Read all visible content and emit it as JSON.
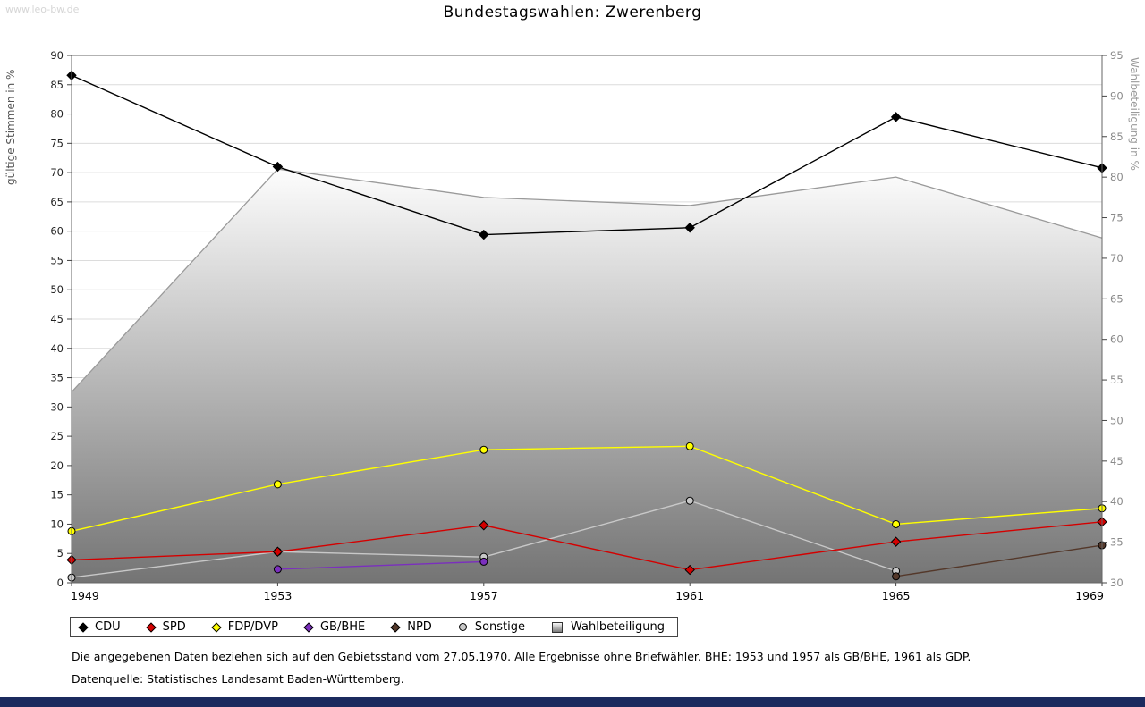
{
  "watermark": "www.leo-bw.de",
  "title": "Bundestagswahlen: Zwerenberg",
  "footnotes": [
    "Die angegebenen Daten beziehen sich auf den Gebietsstand vom 27.05.1970. Alle Ergebnisse ohne Briefwähler. BHE: 1953 und 1957 als GB/BHE, 1961 als GDP.",
    "Datenquelle: Statistisches Landesamt Baden-Württemberg."
  ],
  "colors": {
    "footer_bar": "#1b2a5e",
    "area_gradient_top": "#fdfdfd",
    "area_gradient_bottom": "#747474",
    "area_edge": "#9a9a9a",
    "gridline": "#dcdcdc",
    "plot_border": "#666666"
  },
  "chart_data": {
    "type": "line",
    "title": "Bundestagswahlen: Zwerenberg",
    "x": [
      1949,
      1953,
      1957,
      1961,
      1965,
      1969
    ],
    "left_axis": {
      "label": "gültige Stimmen in %",
      "min": 0,
      "max": 90,
      "tick_step": 5
    },
    "right_axis": {
      "label": "Wahlbeteiligung in %",
      "min": 30,
      "max": 95,
      "tick_step": 5
    },
    "grid": "horizontal",
    "legend_position": "bottom",
    "series": [
      {
        "name": "CDU",
        "axis": "left",
        "color": "#000000",
        "marker": "diamond",
        "legend_marker": "diamond",
        "values": [
          86.6,
          71.0,
          59.4,
          60.6,
          79.5,
          70.8
        ]
      },
      {
        "name": "SPD",
        "axis": "left",
        "color": "#d40000",
        "marker": "diamond",
        "legend_marker": "diamond",
        "values": [
          3.9,
          5.3,
          9.8,
          2.2,
          7.0,
          10.4
        ]
      },
      {
        "name": "FDP/DVP",
        "axis": "left",
        "color": "#ffff00",
        "marker": "circle",
        "legend_marker": "diamond",
        "values": [
          8.8,
          16.8,
          22.7,
          23.3,
          10.0,
          12.7
        ]
      },
      {
        "name": "GB/BHE",
        "axis": "left",
        "color": "#7b2fbe",
        "marker": "circle",
        "legend_marker": "diamond",
        "values": [
          null,
          2.3,
          3.6,
          null,
          null,
          null
        ]
      },
      {
        "name": "NPD",
        "axis": "left",
        "color": "#54382a",
        "marker": "circle",
        "legend_marker": "diamond",
        "values": [
          null,
          null,
          null,
          null,
          1.1,
          6.4
        ]
      },
      {
        "name": "Sonstige",
        "axis": "left",
        "color": "#c8c8c8",
        "marker": "circle",
        "legend_marker": "circle",
        "values": [
          0.9,
          5.3,
          4.4,
          14.0,
          2.0,
          null
        ]
      },
      {
        "name": "Wahlbeteiligung",
        "axis": "right",
        "color": "#9a9a9a",
        "marker": "none",
        "legend_marker": "square",
        "type": "area",
        "values": [
          53.5,
          81.0,
          77.5,
          76.5,
          80.0,
          72.5
        ]
      }
    ]
  }
}
